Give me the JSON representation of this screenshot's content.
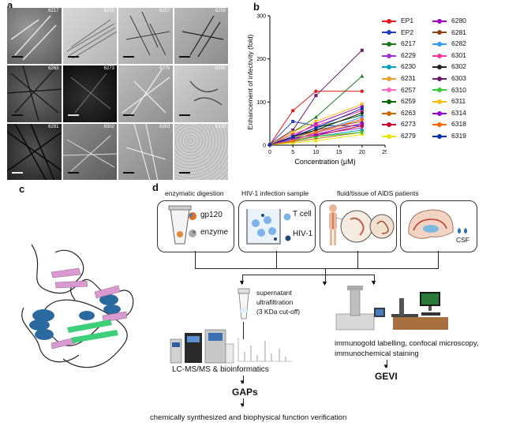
{
  "panels": {
    "a": "a",
    "b": "b",
    "c": "c",
    "d": "d"
  },
  "tem": {
    "labels": [
      "6217",
      "6230",
      "6257",
      "6259",
      "6263",
      "6273",
      "6279",
      "6280",
      "6281",
      "6302",
      "6303",
      "6319"
    ]
  },
  "chart_data": {
    "type": "line",
    "xlabel": "Concentration (μM)",
    "ylabel": "Enhancement of infectivity (fold)",
    "xlim": [
      0,
      25
    ],
    "ylim": [
      0,
      300
    ],
    "xticks": [
      0,
      5,
      10,
      15,
      20,
      25
    ],
    "yticks": [
      0,
      100,
      200,
      300
    ],
    "x": [
      0,
      5,
      10,
      20
    ],
    "legend_position": "right",
    "series": [
      {
        "name": "EP1",
        "color": "#e41a1c",
        "values": [
          1,
          80,
          125,
          125
        ]
      },
      {
        "name": "EP2",
        "color": "#1f3fbf",
        "values": [
          1,
          55,
          45,
          45
        ]
      },
      {
        "name": "6217",
        "color": "#1a7a1a",
        "values": [
          1,
          30,
          65,
          160
        ]
      },
      {
        "name": "6229",
        "color": "#9933cc",
        "values": [
          1,
          15,
          25,
          40
        ]
      },
      {
        "name": "6230",
        "color": "#00a0c0",
        "values": [
          1,
          10,
          20,
          35
        ]
      },
      {
        "name": "6231",
        "color": "#f0a030",
        "values": [
          1,
          20,
          30,
          50
        ]
      },
      {
        "name": "6257",
        "color": "#ff66cc",
        "values": [
          1,
          12,
          28,
          60
        ]
      },
      {
        "name": "6259",
        "color": "#006600",
        "values": [
          1,
          18,
          40,
          70
        ]
      },
      {
        "name": "6263",
        "color": "#cc6600",
        "values": [
          1,
          8,
          15,
          30
        ]
      },
      {
        "name": "6273",
        "color": "#cc0033",
        "values": [
          1,
          10,
          22,
          45
        ]
      },
      {
        "name": "6279",
        "color": "#e6e600",
        "values": [
          1,
          5,
          10,
          25
        ]
      },
      {
        "name": "6280",
        "color": "#a000c0",
        "values": [
          1,
          20,
          50,
          90
        ]
      },
      {
        "name": "6281",
        "color": "#8b4513",
        "values": [
          1,
          15,
          35,
          55
        ]
      },
      {
        "name": "6282",
        "color": "#3399ff",
        "values": [
          1,
          12,
          30,
          65
        ]
      },
      {
        "name": "6301",
        "color": "#ff3399",
        "values": [
          1,
          25,
          45,
          80
        ]
      },
      {
        "name": "6302",
        "color": "#222222",
        "values": [
          1,
          20,
          35,
          75
        ]
      },
      {
        "name": "6303",
        "color": "#6a1b6a",
        "values": [
          1,
          35,
          115,
          220
        ]
      },
      {
        "name": "6310",
        "color": "#33cc33",
        "values": [
          1,
          10,
          20,
          30
        ]
      },
      {
        "name": "6311",
        "color": "#ffbb00",
        "values": [
          1,
          30,
          55,
          95
        ]
      },
      {
        "name": "6314",
        "color": "#9900cc",
        "values": [
          1,
          15,
          25,
          50
        ]
      },
      {
        "name": "6318",
        "color": "#ff6600",
        "values": [
          1,
          10,
          30,
          60
        ]
      },
      {
        "name": "6319",
        "color": "#0033aa",
        "values": [
          1,
          20,
          40,
          85
        ]
      }
    ]
  },
  "diagram": {
    "box1_title": "enzymatic digestion",
    "box1_a": "gp120",
    "box1_b": "enzyme",
    "box2_title": "HIV-1 infection  sample",
    "box2_a": "T cell",
    "box2_b": "HIV-1",
    "box3_title": "fluid/tissue of AIDS patients",
    "box4_label": "CSF",
    "supernatant": "supernatant",
    "ultrafiltration": "ultrafiltration",
    "cutoff": "(3 KDa cut-off)",
    "lcms": "LC-MS/MS & bioinformatics",
    "gaps": "GAPs",
    "final": "chemically synthesized and biophysical function verification",
    "immuno1": "immunogold labelling, confocal microscopy,",
    "immuno2": "immunochemical staining",
    "gevi": "GEVI"
  }
}
